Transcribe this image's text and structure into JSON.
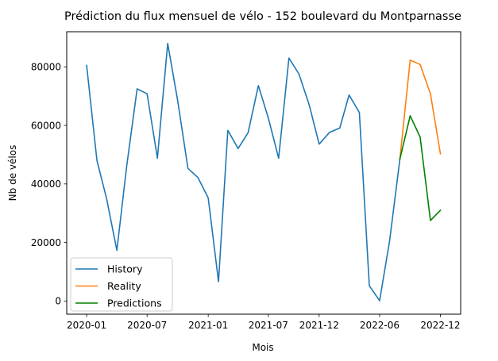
{
  "chart_data": {
    "type": "line",
    "title": "Prédiction du flux mensuel de vélo - 152 boulevard du Montparnasse",
    "xlabel": "Mois",
    "ylabel": "Nb de vélos",
    "xlim": [
      "2019-11-02",
      "2023-01-31"
    ],
    "ylim": [
      -4500,
      92000
    ],
    "x_ticks": [
      {
        "date": "2020-01-01",
        "label": "2020-01"
      },
      {
        "date": "2020-07-01",
        "label": "2020-07"
      },
      {
        "date": "2021-01-01",
        "label": "2021-01"
      },
      {
        "date": "2021-07-01",
        "label": "2021-07"
      },
      {
        "date": "2021-12-01",
        "label": "2021-12"
      },
      {
        "date": "2022-06-01",
        "label": "2022-06"
      },
      {
        "date": "2022-12-01",
        "label": "2022-12"
      }
    ],
    "y_ticks": [
      {
        "value": 0,
        "label": "0"
      },
      {
        "value": 20000,
        "label": "20000"
      },
      {
        "value": 40000,
        "label": "40000"
      },
      {
        "value": 60000,
        "label": "60000"
      },
      {
        "value": 80000,
        "label": "80000"
      }
    ],
    "grid": false,
    "legend_position": "bottom-left",
    "series": [
      {
        "name": "History",
        "color": "#1f77b4",
        "points": [
          {
            "x": "2020-01-01",
            "y": 80500
          },
          {
            "x": "2020-02-01",
            "y": 48000
          },
          {
            "x": "2020-03-01",
            "y": 35000
          },
          {
            "x": "2020-04-01",
            "y": 17300
          },
          {
            "x": "2020-05-01",
            "y": 46500
          },
          {
            "x": "2020-06-01",
            "y": 72500
          },
          {
            "x": "2020-07-01",
            "y": 70800
          },
          {
            "x": "2020-08-01",
            "y": 48800
          },
          {
            "x": "2020-09-01",
            "y": 88000
          },
          {
            "x": "2020-10-01",
            "y": 68500
          },
          {
            "x": "2020-11-01",
            "y": 45300
          },
          {
            "x": "2020-12-01",
            "y": 42200
          },
          {
            "x": "2021-01-01",
            "y": 35200
          },
          {
            "x": "2021-02-01",
            "y": 6600
          },
          {
            "x": "2021-03-01",
            "y": 58300
          },
          {
            "x": "2021-04-01",
            "y": 52100
          },
          {
            "x": "2021-05-01",
            "y": 57500
          },
          {
            "x": "2021-06-01",
            "y": 73600
          },
          {
            "x": "2021-07-01",
            "y": 62500
          },
          {
            "x": "2021-08-01",
            "y": 48800
          },
          {
            "x": "2021-09-01",
            "y": 83000
          },
          {
            "x": "2021-10-01",
            "y": 77600
          },
          {
            "x": "2021-11-01",
            "y": 67000
          },
          {
            "x": "2021-12-01",
            "y": 53600
          },
          {
            "x": "2022-01-01",
            "y": 57600
          },
          {
            "x": "2022-02-01",
            "y": 59100
          },
          {
            "x": "2022-03-01",
            "y": 70400
          },
          {
            "x": "2022-04-01",
            "y": 64400
          },
          {
            "x": "2022-05-01",
            "y": 5200
          },
          {
            "x": "2022-06-01",
            "y": 100
          },
          {
            "x": "2022-07-01",
            "y": 20500
          },
          {
            "x": "2022-08-01",
            "y": 48500
          }
        ]
      },
      {
        "name": "Reality",
        "color": "#ff7f0e",
        "points": [
          {
            "x": "2022-08-01",
            "y": 48500
          },
          {
            "x": "2022-09-01",
            "y": 82300
          },
          {
            "x": "2022-10-01",
            "y": 80800
          },
          {
            "x": "2022-11-01",
            "y": 70800
          },
          {
            "x": "2022-12-01",
            "y": 50300
          }
        ]
      },
      {
        "name": "Predictions",
        "color": "#008000",
        "points": [
          {
            "x": "2022-08-01",
            "y": 48500
          },
          {
            "x": "2022-09-01",
            "y": 63300
          },
          {
            "x": "2022-10-01",
            "y": 56000
          },
          {
            "x": "2022-11-01",
            "y": 27500
          },
          {
            "x": "2022-12-01",
            "y": 31000
          }
        ]
      }
    ]
  }
}
